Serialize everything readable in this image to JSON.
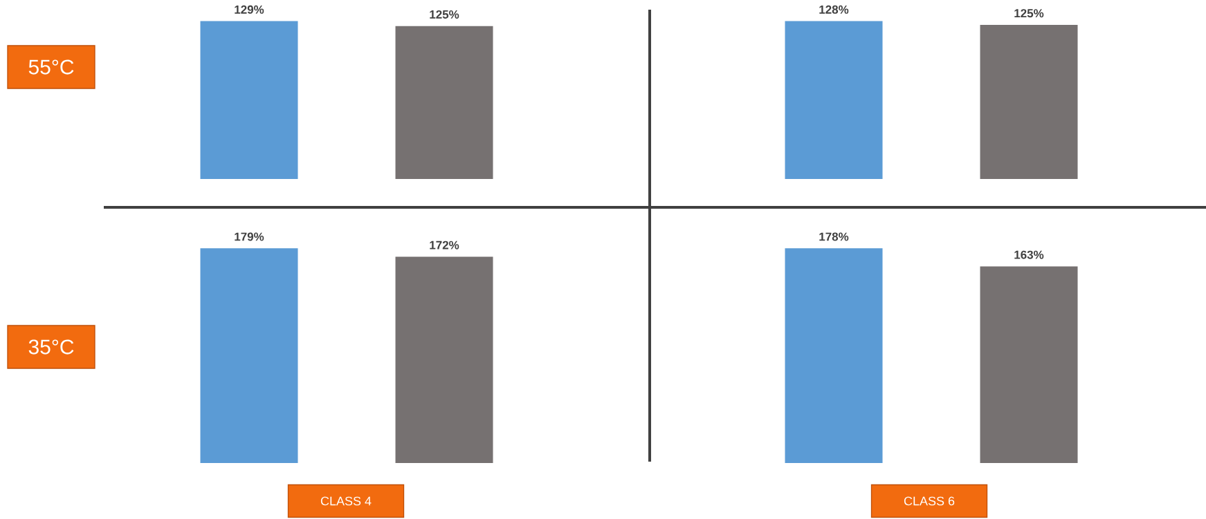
{
  "chart_data": [
    {
      "type": "bar",
      "categories": [
        null,
        null
      ],
      "values": [
        129,
        125
      ],
      "colors": [
        "#5b9bd5",
        "#767171"
      ],
      "value_labels": [
        "129%",
        "125%"
      ],
      "tick_labels": false,
      "ylabel": "55°C"
    },
    {
      "type": "bar",
      "categories": [
        null,
        null
      ],
      "values": [
        128,
        125
      ],
      "colors": [
        "#5b9bd5",
        "#767171"
      ],
      "value_labels": [
        "128%",
        "125%"
      ],
      "tick_labels": false
    },
    {
      "type": "bar",
      "categories": [
        null,
        null
      ],
      "values": [
        179,
        172
      ],
      "colors": [
        "#5b9bd5",
        "#767171"
      ],
      "value_labels": [
        "179%",
        "172%"
      ],
      "tick_labels": false,
      "ylabel": "35°C",
      "xlabel": "CLASS 4"
    },
    {
      "type": "bar",
      "categories": [
        null,
        null
      ],
      "values": [
        178,
        163
      ],
      "colors": [
        "#5b9bd5",
        "#767171"
      ],
      "value_labels": [
        "178%",
        "163%"
      ],
      "tick_labels": false,
      "xlabel": "CLASS 6"
    }
  ]
}
